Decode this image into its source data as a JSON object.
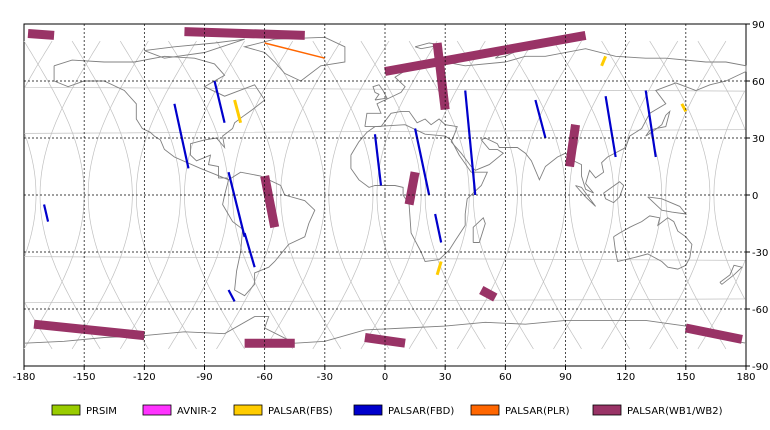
{
  "map": {
    "x_ticks": [
      "-180",
      "-150",
      "-120",
      "-90",
      "-60",
      "-30",
      "0",
      "30",
      "60",
      "90",
      "120",
      "150",
      "180"
    ],
    "y_ticks": [
      "90",
      "60",
      "30",
      "0",
      "-30",
      "-60",
      "-90"
    ],
    "background": "#ffffff",
    "land_color": "#808080",
    "orbit_color": "#c0c0c0",
    "grid": "dashed"
  },
  "legend": [
    {
      "label": "PRSIM",
      "color": "#99cc00"
    },
    {
      "label": "AVNIR-2",
      "color": "#ff33ff"
    },
    {
      "label": "PALSAR(FBS)",
      "color": "#ffcc00"
    },
    {
      "label": "PALSAR(FBD)",
      "color": "#0000cc"
    },
    {
      "label": "PALSAR(PLR)",
      "color": "#ff6600"
    },
    {
      "label": "PALSAR(WB1/WB2)",
      "color": "#993366"
    }
  ],
  "swaths": {
    "wb": [
      {
        "lon1": -178,
        "lat1": 85,
        "lon2": -165,
        "lat2": 84
      },
      {
        "lon1": -100,
        "lat1": 86,
        "lon2": -40,
        "lat2": 84
      },
      {
        "lon1": 0,
        "lat1": 65,
        "lon2": 100,
        "lat2": 84
      },
      {
        "lon1": -60,
        "lat1": 10,
        "lon2": -55,
        "lat2": -17
      },
      {
        "lon1": 15,
        "lat1": 12,
        "lon2": 12,
        "lat2": -5
      },
      {
        "lon1": 95,
        "lat1": 37,
        "lon2": 92,
        "lat2": 15
      },
      {
        "lon1": 30,
        "lat1": 45,
        "lon2": 26,
        "lat2": 80
      },
      {
        "lon1": 48,
        "lat1": -50,
        "lon2": 55,
        "lat2": -54
      },
      {
        "lon1": -175,
        "lat1": -68,
        "lon2": -120,
        "lat2": -74
      },
      {
        "lon1": -70,
        "lat1": -78,
        "lon2": -45,
        "lat2": -78
      },
      {
        "lon1": -10,
        "lat1": -75,
        "lon2": 10,
        "lat2": -78
      },
      {
        "lon1": 150,
        "lat1": -70,
        "lon2": 178,
        "lat2": -76
      }
    ],
    "fbd": [
      {
        "lon1": -105,
        "lat1": 48,
        "lon2": -98,
        "lat2": 14
      },
      {
        "lon1": -78,
        "lat1": 12,
        "lon2": -70,
        "lat2": -22
      },
      {
        "lon1": -70,
        "lat1": -20,
        "lon2": -65,
        "lat2": -38
      },
      {
        "lon1": -78,
        "lat1": -50,
        "lon2": -75,
        "lat2": -56
      },
      {
        "lon1": -85,
        "lat1": 60,
        "lon2": -80,
        "lat2": 38
      },
      {
        "lon1": 15,
        "lat1": 35,
        "lon2": 22,
        "lat2": 0
      },
      {
        "lon1": -5,
        "lat1": 32,
        "lon2": -2,
        "lat2": 5
      },
      {
        "lon1": 40,
        "lat1": 55,
        "lon2": 45,
        "lat2": 0
      },
      {
        "lon1": 25,
        "lat1": -10,
        "lon2": 28,
        "lat2": -25
      },
      {
        "lon1": 75,
        "lat1": 50,
        "lon2": 80,
        "lat2": 30
      },
      {
        "lon1": 110,
        "lat1": 52,
        "lon2": 115,
        "lat2": 20
      },
      {
        "lon1": 130,
        "lat1": 55,
        "lon2": 135,
        "lat2": 20
      },
      {
        "lon1": -170,
        "lat1": -5,
        "lon2": -168,
        "lat2": -14
      }
    ],
    "fbs": [
      {
        "lon1": -75,
        "lat1": 50,
        "lon2": -72,
        "lat2": 38
      },
      {
        "lon1": 110,
        "lat1": 73,
        "lon2": 108,
        "lat2": 68
      },
      {
        "lon1": 148,
        "lat1": 48,
        "lon2": 150,
        "lat2": 44
      },
      {
        "lon1": 28,
        "lat1": -35,
        "lon2": 26,
        "lat2": -42
      }
    ],
    "plr": [
      {
        "lon1": -60,
        "lat1": 80,
        "lon2": -30,
        "lat2": 72
      }
    ]
  }
}
